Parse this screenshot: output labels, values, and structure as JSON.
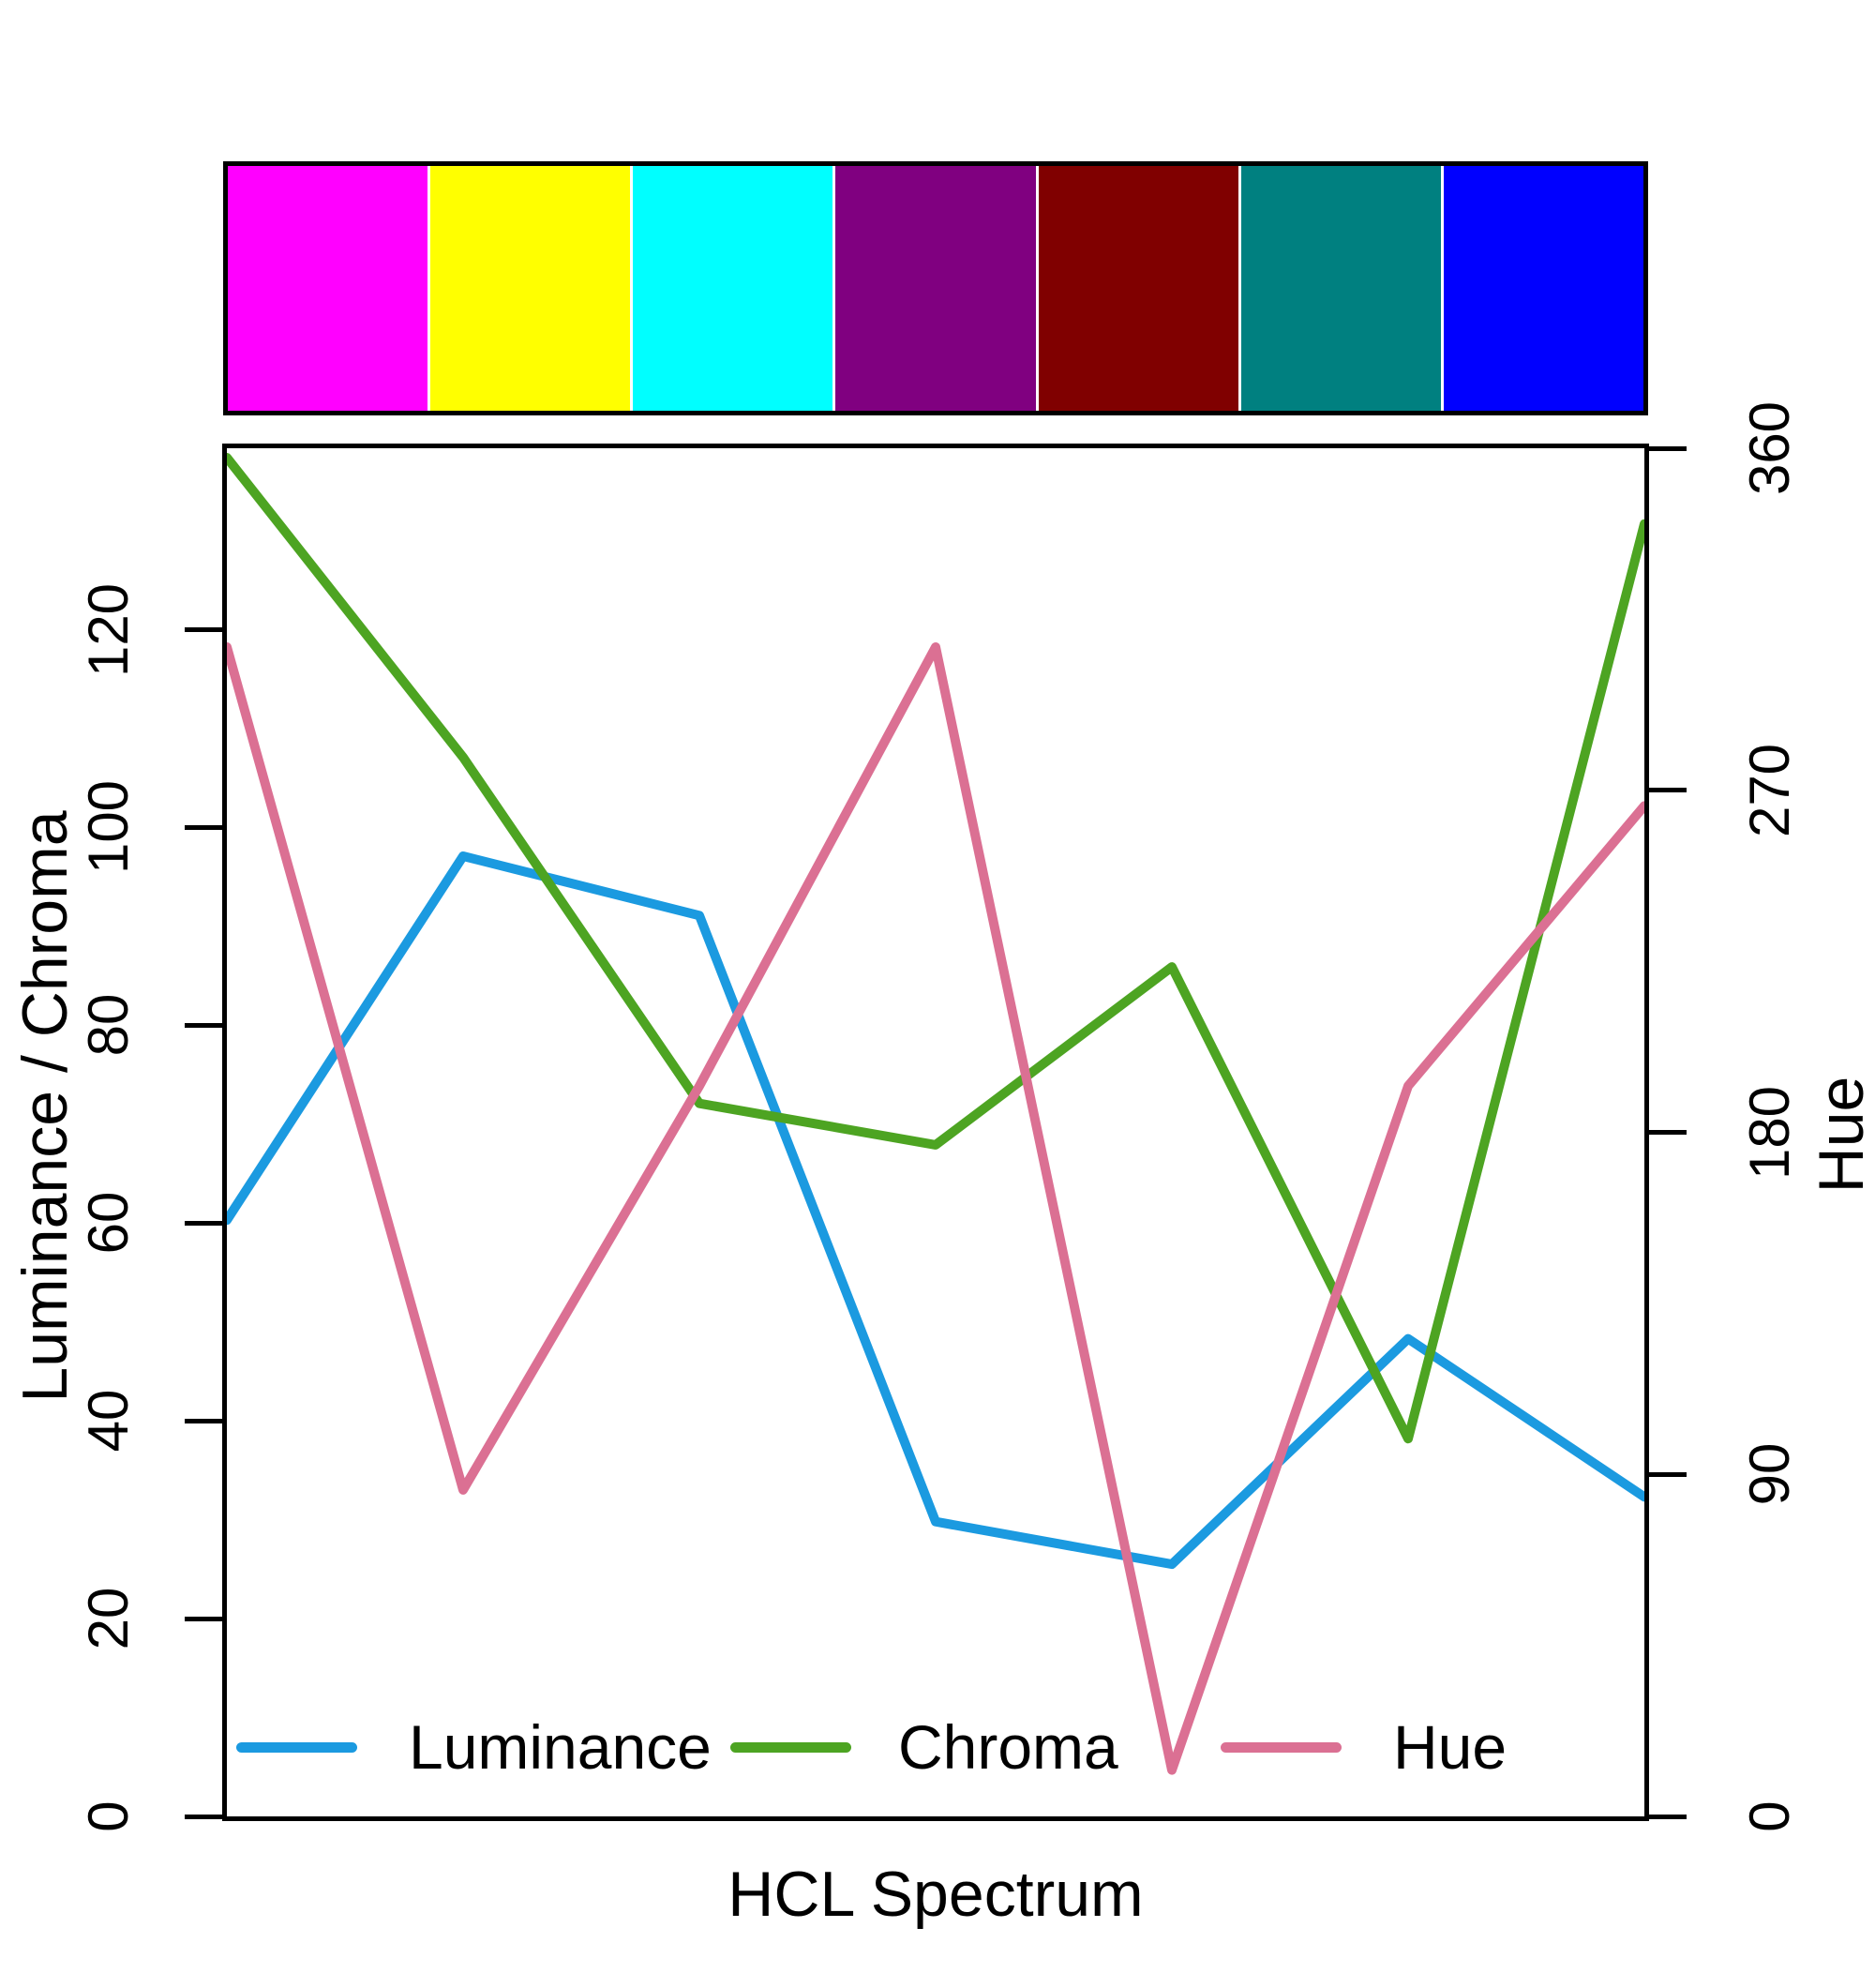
{
  "chart_data": {
    "type": "line",
    "title": "",
    "xlabel": "HCL Spectrum",
    "grid": false,
    "categories": [
      "magenta",
      "yellow",
      "cyan",
      "purple",
      "maroon",
      "teal",
      "blue"
    ],
    "swatches": [
      {
        "name": "magenta",
        "hex": "#FF00FF"
      },
      {
        "name": "yellow",
        "hex": "#FFFF00"
      },
      {
        "name": "cyan",
        "hex": "#00FFFF"
      },
      {
        "name": "purple",
        "hex": "#800080"
      },
      {
        "name": "maroon",
        "hex": "#800000"
      },
      {
        "name": "teal",
        "hex": "#008080"
      },
      {
        "name": "blue",
        "hex": "#0000FF"
      }
    ],
    "left_axis": {
      "label": "Luminance / Chroma",
      "ticks": [
        0,
        20,
        40,
        60,
        80,
        100,
        120
      ],
      "range": [
        0,
        138.35
      ]
    },
    "right_axis": {
      "label": "Hue",
      "ticks": [
        0,
        90,
        180,
        270,
        360
      ],
      "range": [
        0,
        360
      ]
    },
    "series": [
      {
        "name": "Luminance",
        "axis": "left",
        "color": "#1B9AE0",
        "values": [
          60.3,
          97.1,
          91.1,
          29.8,
          25.5,
          48.3,
          32.3
        ]
      },
      {
        "name": "Chroma",
        "axis": "left",
        "color": "#4DA422",
        "values": [
          137.4,
          107.1,
          72.1,
          67.9,
          85.9,
          38.2,
          130.7
        ]
      },
      {
        "name": "Hue",
        "axis": "right",
        "color": "#DB7093",
        "values": [
          307.7,
          85.9,
          192.2,
          307.7,
          12.2,
          192.2,
          265.9
        ]
      }
    ],
    "legend": {
      "position": "bottom-inside",
      "entries": [
        "Luminance",
        "Chroma",
        "Hue"
      ]
    }
  }
}
